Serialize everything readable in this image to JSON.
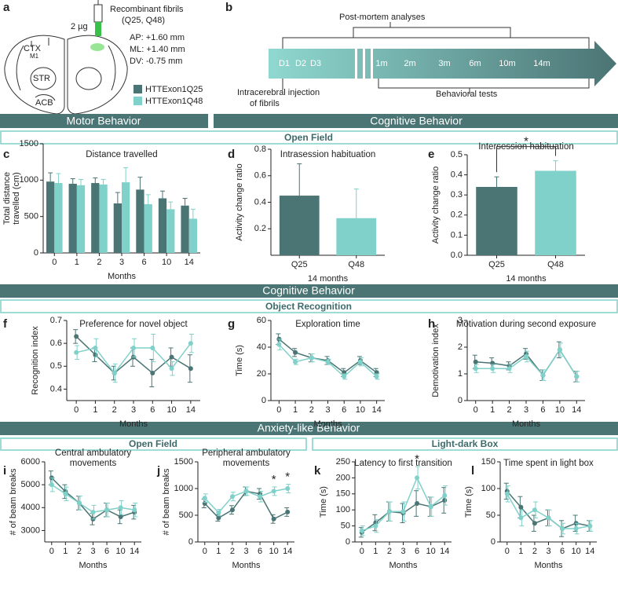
{
  "panel_a": {
    "letter": "a",
    "fibrils": "Recombinant fibrils",
    "fibril_types": "(Q25, Q48)",
    "dose": "2 µg",
    "coordinates": [
      "AP: +1.60 mm",
      "ML: +1.40 mm",
      "DV: -0.75 mm"
    ],
    "regions": [
      "CTX",
      "M1",
      "STR",
      "ACB"
    ],
    "legend": [
      {
        "name": "HTTExon1Q25",
        "color": "#4b7474"
      },
      {
        "name": "HTTExon1Q48",
        "color": "#7fd1c9"
      }
    ]
  },
  "panel_b": {
    "letter": "b",
    "post_mortem": "Post-mortem analyses",
    "injection": [
      "Intracerebral injection",
      "of fibrils"
    ],
    "behavioral": "Behavioral tests",
    "timepoints": [
      "D1",
      "D2",
      "D3",
      "1m",
      "2m",
      "3m",
      "6m",
      "10m",
      "14m"
    ]
  },
  "headers": {
    "motor": "Motor Behavior",
    "cognitive": "Cognitive Behavior",
    "open_field": "Open Field",
    "cognitive2": "Cognitive Behavior",
    "object_recognition": "Object Recognition",
    "anxiety": "Anxiety-like Behavior",
    "open_field2": "Open Field",
    "light_dark": "Light-dark Box"
  },
  "chart_data": [
    {
      "type": "bar",
      "panel": "c",
      "title": "Distance travelled",
      "xlabel": "Months",
      "ylabel": [
        "Total distance",
        "travelled (cm)"
      ],
      "categories": [
        "0",
        "1",
        "2",
        "3",
        "6",
        "10",
        "14"
      ],
      "ylim": [
        0,
        1500
      ],
      "yticks": [
        0,
        500,
        1000,
        1500
      ],
      "series": [
        {
          "color": "#4b7474",
          "values": [
            980,
            950,
            960,
            680,
            870,
            750,
            650
          ],
          "errors": [
            120,
            70,
            70,
            150,
            170,
            100,
            100
          ]
        },
        {
          "color": "#7fd1c9",
          "values": [
            960,
            930,
            940,
            970,
            670,
            600,
            470
          ],
          "errors": [
            130,
            80,
            70,
            200,
            130,
            100,
            130
          ]
        }
      ]
    },
    {
      "type": "bar",
      "panel": "d",
      "title": "Intrasession habituation",
      "xlabel": "14 months",
      "ylabel": [
        "Activity change ratio"
      ],
      "categories": [
        "Q25",
        "Q48"
      ],
      "ylim": [
        0,
        0.8
      ],
      "yticks": [
        0.2,
        0.4,
        0.6,
        0.8
      ],
      "series": [
        {
          "colors": [
            "#4b7474",
            "#7fd1c9"
          ],
          "values": [
            0.45,
            0.28
          ],
          "errors": [
            0.24,
            0.22
          ]
        }
      ]
    },
    {
      "type": "bar",
      "panel": "e",
      "title": "Intersession habituation",
      "xlabel": "14 months",
      "ylabel": [
        "Activity change ratio"
      ],
      "categories": [
        "Q25",
        "Q48"
      ],
      "ylim": [
        0,
        0.5
      ],
      "yticks": [
        {
          "value": 0,
          "label": "0.0"
        },
        0.1,
        0.2,
        0.3,
        0.4,
        0.5
      ],
      "series": [
        {
          "colors": [
            "#4b7474",
            "#7fd1c9"
          ],
          "values": [
            0.34,
            0.42
          ],
          "errors": [
            0.05,
            0.05
          ]
        }
      ],
      "annotations": [
        {
          "text": "*",
          "from": "Q25",
          "to": "Q48"
        }
      ]
    },
    {
      "type": "line",
      "panel": "f",
      "title": "Preference for novel object",
      "xlabel": "Months",
      "ylabel": [
        "Recognition index"
      ],
      "categories": [
        "0",
        "1",
        "2",
        "3",
        "6",
        "10",
        "14"
      ],
      "ylim": [
        0.35,
        0.7
      ],
      "yticks": [
        0.4,
        0.5,
        0.6,
        0.7
      ],
      "series": [
        {
          "color": "#4b7474",
          "values": [
            0.63,
            0.55,
            0.47,
            0.54,
            0.47,
            0.54,
            0.49
          ],
          "errors": [
            0.03,
            0.03,
            0.03,
            0.04,
            0.06,
            0.04,
            0.06
          ]
        },
        {
          "color": "#7fd1c9",
          "values": [
            0.56,
            0.58,
            0.47,
            0.58,
            0.58,
            0.49,
            0.6
          ],
          "errors": [
            0.03,
            0.04,
            0.04,
            0.04,
            0.06,
            0.03,
            0.04
          ]
        }
      ]
    },
    {
      "type": "line",
      "panel": "g",
      "title": "Exploration time",
      "xlabel": "Months",
      "ylabel": [
        "Time (s)"
      ],
      "categories": [
        "0",
        "1",
        "2",
        "3",
        "6",
        "10",
        "14"
      ],
      "ylim": [
        0,
        60
      ],
      "yticks": [
        0,
        20,
        40,
        60
      ],
      "series": [
        {
          "color": "#4b7474",
          "values": [
            46,
            36,
            32,
            30,
            21,
            30,
            21
          ],
          "errors": [
            4,
            3,
            3,
            3,
            3,
            3,
            3
          ]
        },
        {
          "color": "#7fd1c9",
          "values": [
            42,
            29,
            32,
            29,
            18,
            29,
            18
          ],
          "errors": [
            4,
            2,
            3,
            2,
            2,
            3,
            2
          ]
        }
      ]
    },
    {
      "type": "line",
      "panel": "h",
      "title": "Motivation during second exposure",
      "xlabel": "Months",
      "ylabel": [
        "Demotivation index"
      ],
      "categories": [
        "0",
        "1",
        "2",
        "3",
        "6",
        "10",
        "14"
      ],
      "ylim": [
        0,
        3
      ],
      "yticks": [
        0,
        1,
        2,
        3
      ],
      "series": [
        {
          "color": "#4b7474",
          "values": [
            1.45,
            1.4,
            1.3,
            1.75,
            0.95,
            1.9,
            0.9
          ],
          "errors": [
            0.25,
            0.2,
            0.15,
            0.2,
            0.2,
            0.3,
            0.2
          ]
        },
        {
          "color": "#7fd1c9",
          "values": [
            1.2,
            1.2,
            1.2,
            1.65,
            0.95,
            1.9,
            0.9
          ],
          "errors": [
            0.15,
            0.15,
            0.15,
            0.2,
            0.2,
            0.25,
            0.2
          ]
        }
      ]
    },
    {
      "type": "line",
      "panel": "i",
      "title": [
        "Central ambulatory",
        "movements"
      ],
      "xlabel": "Months",
      "ylabel": [
        "# of beam breaks"
      ],
      "categories": [
        "0",
        "1",
        "2",
        "3",
        "6",
        "10",
        "14"
      ],
      "ylim": [
        2500,
        6000
      ],
      "yticks": [
        3000,
        4000,
        5000,
        6000
      ],
      "series": [
        {
          "color": "#4b7474",
          "values": [
            5300,
            4700,
            4200,
            3500,
            3900,
            3600,
            3800
          ],
          "errors": [
            300,
            300,
            300,
            250,
            300,
            300,
            300
          ]
        },
        {
          "color": "#7fd1c9",
          "values": [
            5000,
            4600,
            4200,
            3800,
            3900,
            4000,
            3900
          ],
          "errors": [
            300,
            300,
            300,
            300,
            300,
            300,
            300
          ]
        }
      ]
    },
    {
      "type": "line",
      "panel": "j",
      "title": [
        "Peripheral ambulatory",
        "movements"
      ],
      "xlabel": "Months",
      "ylabel": [
        "# of beam breaks"
      ],
      "categories": [
        "0",
        "1",
        "2",
        "3",
        "6",
        "10",
        "14"
      ],
      "ylim": [
        0,
        1500
      ],
      "yticks": [
        0,
        500,
        1000,
        1500
      ],
      "series": [
        {
          "color": "#4b7474",
          "values": [
            720,
            450,
            600,
            950,
            900,
            430,
            560
          ],
          "errors": [
            80,
            60,
            80,
            80,
            100,
            80,
            80
          ]
        },
        {
          "color": "#7fd1c9",
          "values": [
            820,
            550,
            850,
            950,
            850,
            950,
            1000
          ],
          "errors": [
            80,
            60,
            80,
            80,
            100,
            80,
            80
          ]
        }
      ],
      "annotations": [
        {
          "text": "*",
          "at": "10"
        },
        {
          "text": "*",
          "at": "14"
        }
      ]
    },
    {
      "type": "line",
      "panel": "k",
      "title": "Latency to first transition",
      "xlabel": "Months",
      "ylabel": [
        "Time (s)"
      ],
      "categories": [
        "0",
        "1",
        "2",
        "3",
        "6",
        "10",
        "14"
      ],
      "ylim": [
        0,
        250
      ],
      "yticks": [
        0,
        50,
        100,
        150,
        200,
        250
      ],
      "series": [
        {
          "color": "#4b7474",
          "values": [
            30,
            60,
            95,
            90,
            120,
            110,
            130
          ],
          "errors": [
            15,
            25,
            30,
            30,
            40,
            30,
            40
          ]
        },
        {
          "color": "#7fd1c9",
          "values": [
            35,
            50,
            95,
            95,
            200,
            110,
            145
          ],
          "errors": [
            15,
            20,
            30,
            30,
            35,
            30,
            30
          ]
        }
      ],
      "annotations": [
        {
          "text": "*",
          "at": "6"
        }
      ]
    },
    {
      "type": "line",
      "panel": "l",
      "title": "Time spent in light box",
      "xlabel": "Months",
      "ylabel": [
        "Time (s)"
      ],
      "categories": [
        "0",
        "1",
        "2",
        "3",
        "6",
        "10",
        "14"
      ],
      "ylim": [
        0,
        150
      ],
      "yticks": [
        0,
        50,
        100,
        150
      ],
      "series": [
        {
          "color": "#4b7474",
          "values": [
            95,
            65,
            35,
            45,
            25,
            35,
            30
          ],
          "errors": [
            15,
            20,
            15,
            15,
            15,
            15,
            10
          ]
        },
        {
          "color": "#7fd1c9",
          "values": [
            90,
            45,
            60,
            45,
            25,
            25,
            30
          ],
          "errors": [
            15,
            15,
            15,
            15,
            10,
            10,
            10
          ]
        }
      ]
    }
  ]
}
